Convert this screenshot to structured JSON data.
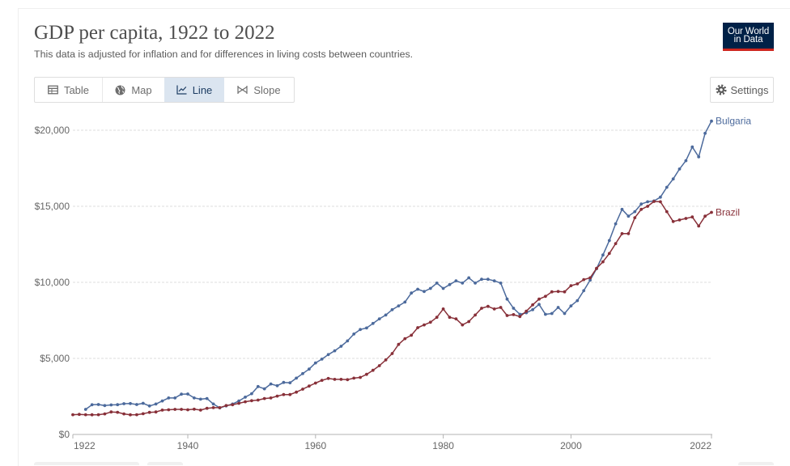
{
  "brand": {
    "logo_line1": "Our World",
    "logo_line2": "in Data"
  },
  "toolbar": {
    "tabs": [
      {
        "label": "Table",
        "icon": "table-icon",
        "active": false
      },
      {
        "label": "Map",
        "icon": "globe-icon",
        "active": false
      },
      {
        "label": "Line",
        "icon": "line-chart-icon",
        "active": true
      },
      {
        "label": "Slope",
        "icon": "slope-icon",
        "active": false
      }
    ],
    "settings": {
      "label": "Settings",
      "icon": "gear-icon"
    }
  },
  "colors": {
    "logo_background": "#002147",
    "logo_accent": "#ce261e",
    "active_tab_background": "#dbe5f0",
    "active_tab_text": "#1d3d63"
  },
  "chart_data": {
    "type": "line",
    "title": "GDP per capita, 1922 to 2022",
    "subtitle": "This data is adjusted for inflation and for differences in living costs between countries.",
    "xlabel": "",
    "ylabel": "",
    "xlim": [
      1922,
      2022
    ],
    "ylim": [
      0,
      20000
    ],
    "grid": true,
    "legend": "right",
    "x_ticks": [
      1922,
      1940,
      1960,
      1980,
      2000,
      2022
    ],
    "y_ticks": [
      {
        "value": 0,
        "label": "$0"
      },
      {
        "value": 5000,
        "label": "$5,000"
      },
      {
        "value": 10000,
        "label": "$10,000"
      },
      {
        "value": 15000,
        "label": "$15,000"
      },
      {
        "value": 20000,
        "label": "$20,000"
      }
    ],
    "series": [
      {
        "name": "Bulgaria",
        "color": "#4c6a9c",
        "x": [
          1924,
          1925,
          1926,
          1927,
          1928,
          1929,
          1930,
          1931,
          1932,
          1933,
          1934,
          1935,
          1936,
          1937,
          1938,
          1939,
          1940,
          1941,
          1942,
          1943,
          1944,
          1945,
          1946,
          1947,
          1948,
          1949,
          1950,
          1951,
          1952,
          1953,
          1954,
          1955,
          1956,
          1957,
          1958,
          1959,
          1960,
          1961,
          1962,
          1963,
          1964,
          1965,
          1966,
          1967,
          1968,
          1969,
          1970,
          1971,
          1972,
          1973,
          1974,
          1975,
          1976,
          1977,
          1978,
          1979,
          1980,
          1981,
          1982,
          1983,
          1984,
          1985,
          1986,
          1987,
          1988,
          1989,
          1990,
          1991,
          1992,
          1993,
          1994,
          1995,
          1996,
          1997,
          1998,
          1999,
          2000,
          2001,
          2002,
          2003,
          2004,
          2005,
          2006,
          2007,
          2008,
          2009,
          2010,
          2011,
          2012,
          2013,
          2014,
          2015,
          2016,
          2017,
          2018,
          2019,
          2020,
          2021,
          2022
        ],
        "values": [
          1650,
          1950,
          1970,
          1900,
          1940,
          1960,
          2020,
          2030,
          1970,
          2050,
          1870,
          2000,
          2200,
          2400,
          2400,
          2650,
          2660,
          2400,
          2320,
          2360,
          2000,
          1750,
          1880,
          2000,
          2200,
          2450,
          2680,
          3150,
          3000,
          3320,
          3200,
          3420,
          3400,
          3700,
          4000,
          4300,
          4700,
          4950,
          5250,
          5500,
          5800,
          6150,
          6600,
          6900,
          7000,
          7300,
          7600,
          7850,
          8200,
          8450,
          8700,
          9300,
          9550,
          9400,
          9600,
          9950,
          9600,
          9850,
          10100,
          9950,
          10300,
          9950,
          10200,
          10200,
          10100,
          9950,
          8900,
          8300,
          7900,
          8000,
          8200,
          8550,
          7900,
          7950,
          8350,
          7950,
          8450,
          8800,
          9450,
          10150,
          10900,
          11800,
          12750,
          13850,
          14800,
          14350,
          14650,
          15150,
          15300,
          15350,
          15600,
          16250,
          16800,
          17450,
          18000,
          18900,
          18250,
          19800,
          20600
        ]
      },
      {
        "name": "Brazil",
        "color": "#883039",
        "x": [
          1922,
          1923,
          1924,
          1925,
          1926,
          1927,
          1928,
          1929,
          1930,
          1931,
          1932,
          1933,
          1934,
          1935,
          1936,
          1937,
          1938,
          1939,
          1940,
          1941,
          1942,
          1943,
          1944,
          1945,
          1946,
          1947,
          1948,
          1949,
          1950,
          1951,
          1952,
          1953,
          1954,
          1955,
          1956,
          1957,
          1958,
          1959,
          1960,
          1961,
          1962,
          1963,
          1964,
          1965,
          1966,
          1967,
          1968,
          1969,
          1970,
          1971,
          1972,
          1973,
          1974,
          1975,
          1976,
          1977,
          1978,
          1979,
          1980,
          1981,
          1982,
          1983,
          1984,
          1985,
          1986,
          1987,
          1988,
          1989,
          1990,
          1991,
          1992,
          1993,
          1994,
          1995,
          1996,
          1997,
          1998,
          1999,
          2000,
          2001,
          2002,
          2003,
          2004,
          2005,
          2006,
          2007,
          2008,
          2009,
          2010,
          2011,
          2012,
          2013,
          2014,
          2015,
          2016,
          2017,
          2018,
          2019,
          2020,
          2021,
          2022
        ],
        "values": [
          1300,
          1320,
          1300,
          1290,
          1300,
          1350,
          1480,
          1460,
          1350,
          1290,
          1300,
          1360,
          1450,
          1480,
          1600,
          1620,
          1650,
          1650,
          1620,
          1660,
          1600,
          1720,
          1760,
          1760,
          1900,
          1950,
          2050,
          2150,
          2220,
          2260,
          2360,
          2400,
          2520,
          2620,
          2620,
          2780,
          2980,
          3180,
          3380,
          3560,
          3680,
          3620,
          3620,
          3600,
          3700,
          3750,
          3950,
          4220,
          4520,
          4900,
          5320,
          5920,
          6300,
          6520,
          7020,
          7200,
          7380,
          7700,
          8250,
          7700,
          7600,
          7200,
          7420,
          7850,
          8300,
          8420,
          8250,
          8350,
          7820,
          7880,
          7750,
          8100,
          8520,
          8900,
          9080,
          9380,
          9400,
          9380,
          9780,
          9900,
          10180,
          10300,
          10920,
          11350,
          11900,
          12550,
          13200,
          13200,
          14250,
          14800,
          15000,
          15320,
          15300,
          14650,
          14000,
          14100,
          14200,
          14300,
          13700,
          14350,
          14600
        ]
      }
    ]
  }
}
